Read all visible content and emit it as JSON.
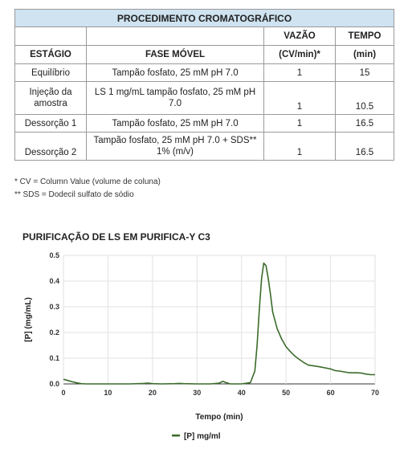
{
  "table": {
    "title": "PROCEDIMENTO CROMATOGRÁFICO",
    "headers_top": [
      "",
      "",
      "VAZÃO",
      "TEMPO"
    ],
    "headers_bottom": [
      "ESTÁGIO",
      "FASE MÓVEL",
      "(CV/min)*",
      "(min)"
    ],
    "rows": [
      {
        "stage": "Equilíbrio",
        "phase": "Tampão fosfato, 25 mM pH 7.0",
        "flow": "1",
        "time": "15"
      },
      {
        "stage": "Injeção da amostra",
        "phase": "LS 1 mg/mL tampão fosfato, 25 mM pH 7.0",
        "flow": "1",
        "time": "10.5"
      },
      {
        "stage": "Dessorção 1",
        "phase": "Tampão fosfato, 25 mM pH 7.0",
        "flow": "1",
        "time": "16.5"
      },
      {
        "stage": "Dessorção 2",
        "phase": "Tampão fosfato, 25 mM pH 7.0 + SDS** 1% (m/v)",
        "flow": "1",
        "time": "16.5"
      }
    ]
  },
  "notes": [
    "* CV = Column Value (volume de coluna)",
    "** SDS = Dodecil sulfato de sódio"
  ],
  "chart_data": {
    "type": "line",
    "title": "PURIFICAÇÃO DE LS EM PURIFICA-Y C3",
    "xlabel": "Tempo (min)",
    "ylabel": "[P] (mg/mL)",
    "xlim": [
      0,
      70
    ],
    "ylim": [
      0,
      0.5
    ],
    "xticks": [
      0,
      10,
      20,
      30,
      40,
      50,
      60,
      70
    ],
    "yticks": [
      0.0,
      0.1,
      0.2,
      0.3,
      0.4,
      0.5
    ],
    "series": [
      {
        "name": "[P] mg/ml",
        "color": "#3b6b2a",
        "x": [
          0,
          1,
          2,
          3,
          4,
          5,
          6,
          8,
          10,
          12,
          15,
          18,
          19,
          20,
          22,
          25,
          26,
          27,
          30,
          33,
          35,
          35.8,
          36.5,
          37.5,
          40,
          42,
          43,
          43.5,
          44,
          44.5,
          45,
          45.5,
          46,
          46.5,
          47,
          48,
          49,
          50,
          51,
          52,
          53,
          54,
          55,
          57,
          58,
          60,
          61,
          62,
          63,
          64,
          65,
          66,
          67,
          68,
          69,
          70
        ],
        "y": [
          0.018,
          0.013,
          0.008,
          0.004,
          0.001,
          0.0,
          0.0,
          0.0,
          0.0,
          0.0,
          0.0,
          0.002,
          0.003,
          0.001,
          0.0,
          0.001,
          0.002,
          0.001,
          0.0,
          0.0,
          0.003,
          0.01,
          0.005,
          0.0,
          0.0,
          0.005,
          0.05,
          0.15,
          0.29,
          0.41,
          0.47,
          0.46,
          0.41,
          0.35,
          0.28,
          0.215,
          0.175,
          0.145,
          0.125,
          0.108,
          0.095,
          0.083,
          0.073,
          0.068,
          0.065,
          0.058,
          0.052,
          0.05,
          0.047,
          0.044,
          0.043,
          0.043,
          0.042,
          0.038,
          0.036,
          0.036
        ]
      }
    ],
    "legend_position": "bottom"
  }
}
